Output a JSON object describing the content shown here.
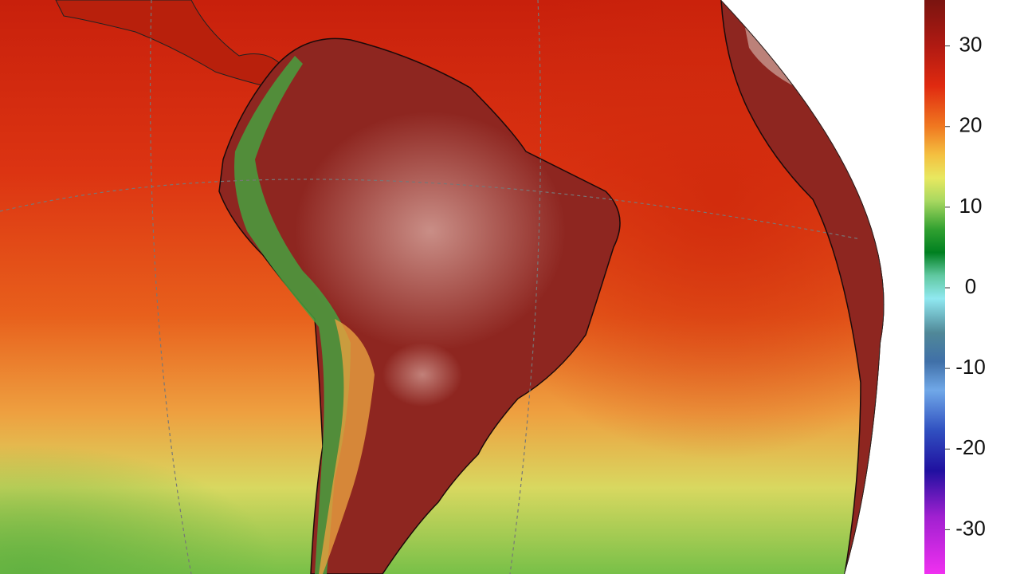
{
  "colorbar": {
    "range": [
      -35.5,
      35.7
    ],
    "ticks": [
      30,
      20,
      10,
      0,
      -10,
      -20,
      -30
    ]
  }
}
